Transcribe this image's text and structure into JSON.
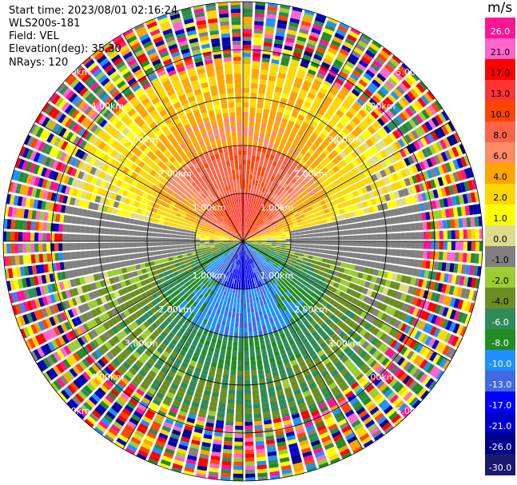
{
  "header": {
    "start_time": "Start time: 2023/08/01 02:16:24",
    "instrument": "WLS200s-181",
    "field": "Field: VEL",
    "elevation": "Elevation(deg): 35.30",
    "nrays": "NRays: 120"
  },
  "colorbar": {
    "unit": "m/s",
    "ticks": [
      "26.0",
      "21.0",
      "17.0",
      "13.0",
      "10.0",
      "8.0",
      "6.0",
      "4.0",
      "2.0",
      "1.0",
      "0.0",
      "-1.0",
      "-2.0",
      "-4.0",
      "-6.0",
      "-8.0",
      "-10.0",
      "-13.0",
      "-17.0",
      "-21.0",
      "-26.0",
      "-30.0"
    ],
    "colors": [
      "#ff1493",
      "#ff66cc",
      "#ff0000",
      "#ff3333",
      "#ff4500",
      "#ff6347",
      "#ff8c66",
      "#ffa500",
      "#ffd700",
      "#ffff00",
      "#dcdc8c",
      "#808080",
      "#9acd32",
      "#6b8e23",
      "#2e8b57",
      "#228b22",
      "#1e90ff",
      "#4169e1",
      "#0000ff",
      "#0000cd",
      "#00008b",
      "#191970"
    ]
  },
  "chart_data": {
    "type": "ppi",
    "field": "VEL",
    "nrays": 120,
    "elevation_deg": 35.3,
    "range_rings_km": [
      1.0,
      2.0,
      3.0,
      4.0,
      5.0
    ],
    "ring_labels": [
      "1.00km",
      "2.00km",
      "3.00km",
      "4.00km",
      "5.00km"
    ],
    "colorbar_unit": "m/s",
    "colorbar_range": [
      -30.0,
      26.0
    ]
  }
}
